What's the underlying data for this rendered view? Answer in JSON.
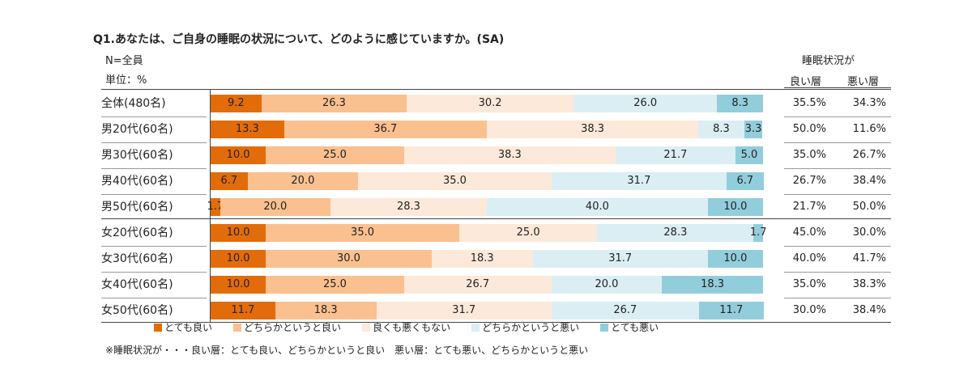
{
  "title": "Q1.あなたは、ご自身の睡眠の状況について、どのように感じていますか。(SA)",
  "n_label": "N=全員",
  "unit_label": "単位：%",
  "header": {
    "group": "睡眠状況が",
    "good": "良い層",
    "bad": "悪い層"
  },
  "colors": [
    "#e36c0a",
    "#fac090",
    "#fde9d9",
    "#dbeef4",
    "#92cddc"
  ],
  "footnote": "※睡眠状況が・・・良い層：とても良い、どちらかというと良い　悪い層：とても悪い、どちらかというと悪い",
  "chart_data": {
    "type": "bar",
    "orientation": "horizontal",
    "stacked": true,
    "percent": true,
    "title": "Q1.あなたは、ご自身の睡眠の状況について、どのように感じていますか。(SA)",
    "categories": [
      "全体(480名)",
      "男20代(60名)",
      "男30代(60名)",
      "男40代(60名)",
      "男50代(60名)",
      "女20代(60名)",
      "女30代(60名)",
      "女40代(60名)",
      "女50代(60名)"
    ],
    "series": [
      {
        "name": "とても良い",
        "values": [
          9.2,
          13.3,
          10.0,
          6.7,
          1.7,
          10.0,
          10.0,
          10.0,
          11.7
        ]
      },
      {
        "name": "どちらかというと良い",
        "values": [
          26.3,
          36.7,
          25.0,
          20.0,
          20.0,
          35.0,
          30.0,
          25.0,
          18.3
        ]
      },
      {
        "name": "良くも悪くもない",
        "values": [
          30.2,
          38.3,
          38.3,
          35.0,
          28.3,
          25.0,
          18.3,
          26.7,
          31.7
        ]
      },
      {
        "name": "どちらかというと悪い",
        "values": [
          26.0,
          8.3,
          21.7,
          31.7,
          40.0,
          28.3,
          31.7,
          20.0,
          26.7
        ]
      },
      {
        "name": "とても悪い",
        "values": [
          8.3,
          3.3,
          5.0,
          6.7,
          10.0,
          1.7,
          10.0,
          18.3,
          11.7
        ]
      }
    ],
    "labels": [
      [
        "9.2",
        "26.3",
        "30.2",
        "26.0",
        "8.3"
      ],
      [
        "13.3",
        "36.7",
        "38.3",
        "8.3",
        "3.3"
      ],
      [
        "10.0",
        "25.0",
        "38.3",
        "21.7",
        "5.0"
      ],
      [
        "6.7",
        "20.0",
        "35.0",
        "31.7",
        "6.7"
      ],
      [
        "1.7",
        "20.0",
        "28.3",
        "40.0",
        "10.0"
      ],
      [
        "10.0",
        "35.0",
        "25.0",
        "28.3",
        "1.7"
      ],
      [
        "10.0",
        "30.0",
        "18.3",
        "31.7",
        "10.0"
      ],
      [
        "10.0",
        "25.0",
        "26.7",
        "20.0",
        "18.3"
      ],
      [
        "11.7",
        "18.3",
        "31.7",
        "26.7",
        "11.7"
      ]
    ],
    "good_layer": [
      "35.5%",
      "50.0%",
      "35.0%",
      "26.7%",
      "21.7%",
      "45.0%",
      "40.0%",
      "35.0%",
      "30.0%"
    ],
    "bad_layer": [
      "34.3%",
      "11.6%",
      "26.7%",
      "38.4%",
      "50.0%",
      "30.0%",
      "41.7%",
      "38.3%",
      "38.4%"
    ],
    "xlim": [
      0,
      100
    ],
    "legend_position": "bottom"
  }
}
